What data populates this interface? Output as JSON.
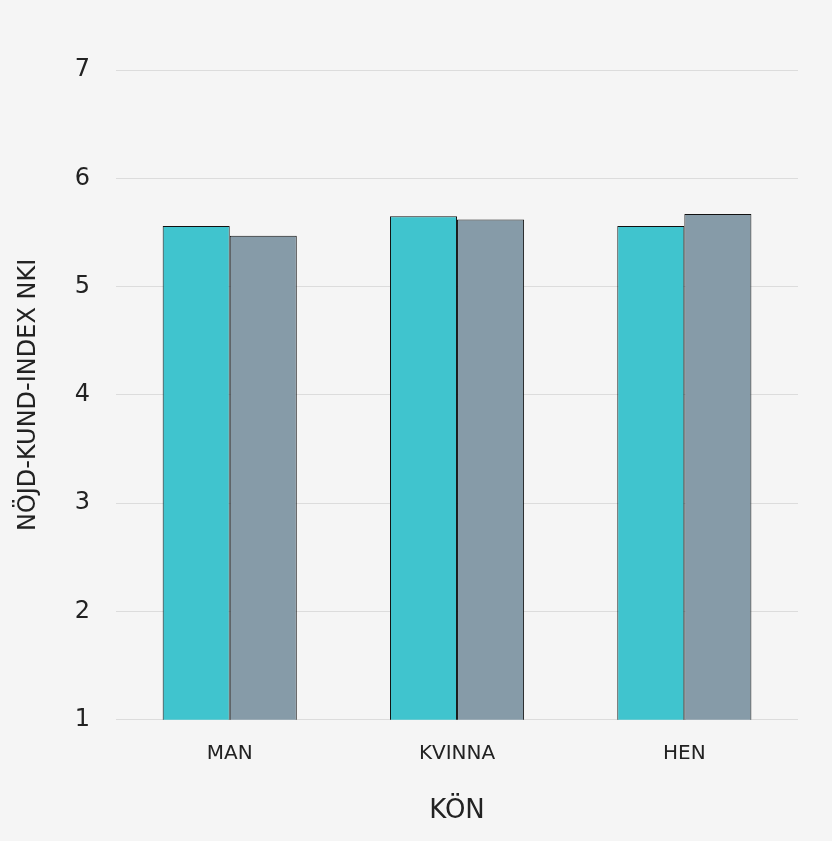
{
  "chart_data": {
    "type": "bar",
    "x_label": "KÖN",
    "y_label": "NÖJD-KUND-INDEX NKI",
    "categories": [
      "MAN",
      "KVINNA",
      "HEN"
    ],
    "series": [
      {
        "color": "#40c4ce",
        "values": [
          5.56,
          5.65,
          5.56
        ]
      },
      {
        "color": "#869ba8",
        "values": [
          5.47,
          5.62,
          5.67
        ]
      }
    ],
    "ylim": [
      1,
      7
    ],
    "yticks": [
      1,
      2,
      3,
      4,
      5,
      6,
      7
    ],
    "grid": true
  }
}
